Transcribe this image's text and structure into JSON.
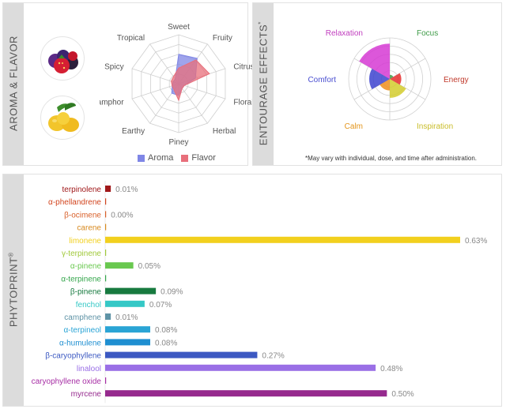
{
  "aroma_flavor": {
    "label": "AROMA & FLAVOR",
    "images": [
      "berries-image",
      "lemons-image"
    ],
    "legend": [
      {
        "name": "Aroma",
        "color": "#7f86e6"
      },
      {
        "name": "Flavor",
        "color": "#e86f7b"
      }
    ]
  },
  "entourage": {
    "label": "ENTOURAGE EFFECTS",
    "label_mark": "*",
    "note": "*May vary with individual, dose, and time after administration."
  },
  "phytoprint": {
    "label": "PHYTOPRINT",
    "label_mark": "®"
  },
  "chart_data": [
    {
      "type": "radar",
      "title": "Aroma & Flavor",
      "axes": [
        "Sweet",
        "Fruity",
        "Citrusy",
        "Floral",
        "Herbal",
        "Piney",
        "Earthy",
        "Camphor",
        "Spicy",
        "Tropical"
      ],
      "axis_colors": [
        "#555555",
        "#555555",
        "#555555",
        "#555555",
        "#555555",
        "#555555",
        "#555555",
        "#555555",
        "#555555",
        "#555555"
      ],
      "rings": 5,
      "max": 5,
      "series": [
        {
          "name": "Aroma",
          "color": "#7f86e6",
          "values": [
            3,
            3.2,
            1.8,
            0.6,
            0.6,
            1.2,
            1.2,
            0.7,
            0.6,
            0.6
          ]
        },
        {
          "name": "Flavor",
          "color": "#e86f7b",
          "values": [
            1.6,
            3.0,
            3.3,
            0.6,
            0.6,
            1.7,
            0.8,
            0.7,
            0.8,
            0.9
          ]
        }
      ]
    },
    {
      "type": "polar-area",
      "title": "Entourage Effects",
      "rings": 5,
      "max": 5,
      "categories": [
        "Focus",
        "Energy",
        "Inspiration",
        "Calm",
        "Comfort",
        "Relaxation"
      ],
      "label_colors": [
        "#3f9b48",
        "#c0392b",
        "#c9bd2a",
        "#e3951b",
        "#4a4fd1",
        "#c13fbf"
      ],
      "fill_colors": [
        "#3f9b48",
        "#e52d2d",
        "#d3cd2d",
        "#ef8e1d",
        "#3d43cf",
        "#d63ad3"
      ],
      "values": [
        0.5,
        1.4,
        2.3,
        1.4,
        2.5,
        4.3
      ]
    },
    {
      "type": "bar",
      "orientation": "horizontal",
      "title": "Phytoprint",
      "unit": "%",
      "max": 0.63,
      "categories": [
        "terpinolene",
        "α-phellandrene",
        "β-ocimene",
        "carene",
        "limonene",
        "γ-terpinene",
        "α-pinene",
        "α-terpinene",
        "β-pinene",
        "fenchol",
        "camphene",
        "α-terpineol",
        "α-humulene",
        "β-caryophyllene",
        "linalool",
        "caryophyllene oxide",
        "myrcene"
      ],
      "values": [
        0.01,
        0,
        0.0,
        0,
        0.63,
        0,
        0.05,
        0,
        0.09,
        0.07,
        0.01,
        0.08,
        0.08,
        0.27,
        0.48,
        0,
        0.5
      ],
      "value_labels": [
        "0.01%",
        "",
        "0.00%",
        "",
        "0.63%",
        "",
        "0.05%",
        "",
        "0.09%",
        "0.07%",
        "0.01%",
        "0.08%",
        "0.08%",
        "0.27%",
        "0.48%",
        "",
        "0.50%"
      ],
      "colors": [
        "#a0181a",
        "#d2451f",
        "#d9602a",
        "#d88a20",
        "#f2d01e",
        "#a0c93a",
        "#69c84f",
        "#34a64b",
        "#177a3f",
        "#35c8c6",
        "#5f93a6",
        "#2aa4d5",
        "#1f8fd1",
        "#3c59c2",
        "#9a6fe6",
        "#a72ea5",
        "#962a8e"
      ]
    }
  ]
}
